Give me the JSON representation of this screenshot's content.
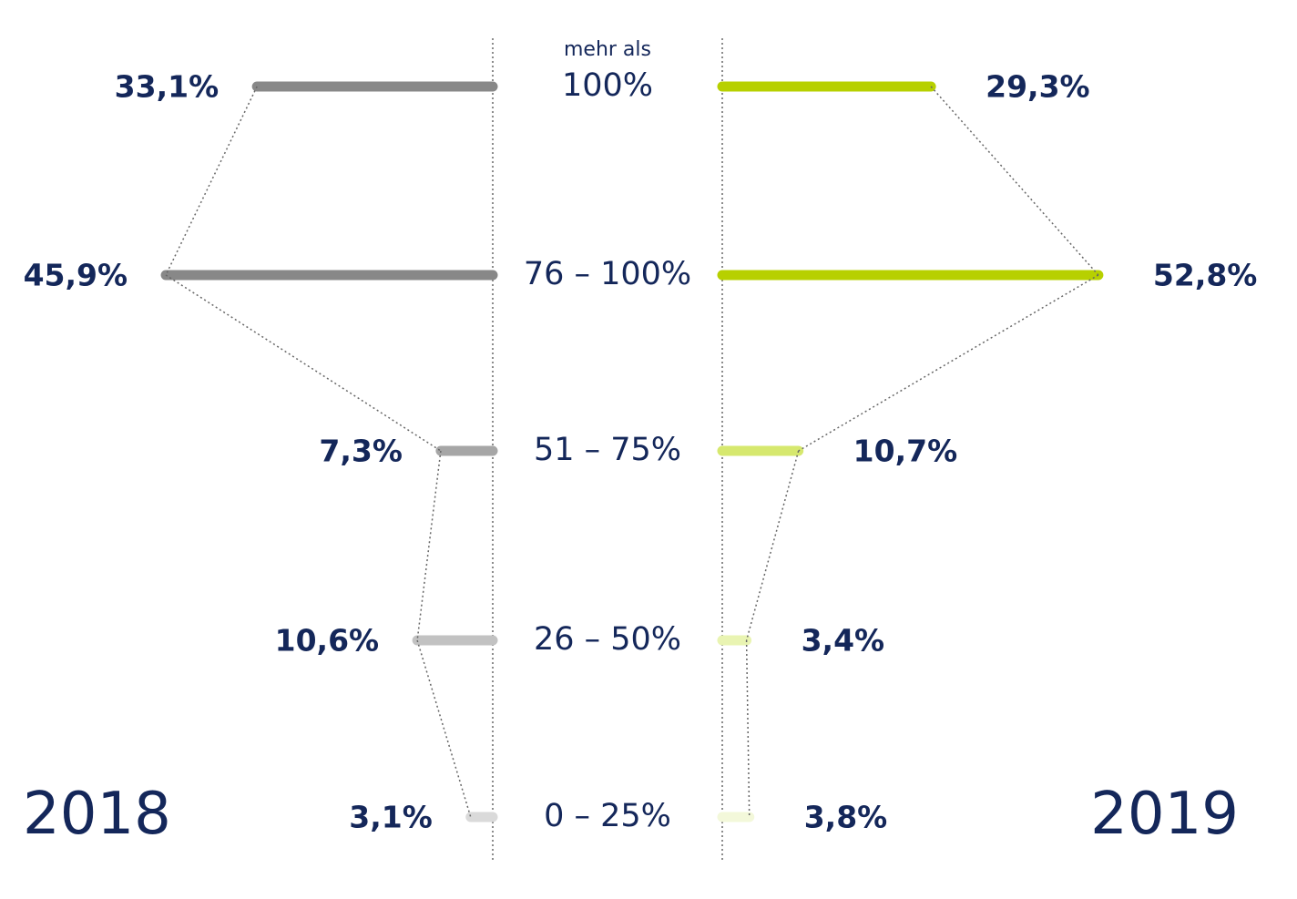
{
  "chart_data": {
    "type": "butterfly",
    "categories": [
      "mehr als\n100%",
      "76 – 100%",
      "51 – 75%",
      "26 – 50%",
      "0 – 25%"
    ],
    "series": [
      {
        "name": "2018",
        "colors": [
          "#888888",
          "#888888",
          "#a6a6a6",
          "#c2c2c2",
          "#dadada"
        ],
        "values": [
          33.1,
          45.9,
          7.3,
          10.6,
          3.1
        ],
        "value_labels": [
          "33,1%",
          "45,9%",
          "7,3%",
          "10,6%",
          "3,1%"
        ]
      },
      {
        "name": "2019",
        "colors": [
          "#b7d000",
          "#b7d000",
          "#d6e86e",
          "#e9f4b2",
          "#f3f8da"
        ],
        "values": [
          29.3,
          52.8,
          10.7,
          3.4,
          3.8
        ],
        "value_labels": [
          "29,3%",
          "52,8%",
          "10,7%",
          "3,4%",
          "3,8%"
        ]
      }
    ]
  }
}
